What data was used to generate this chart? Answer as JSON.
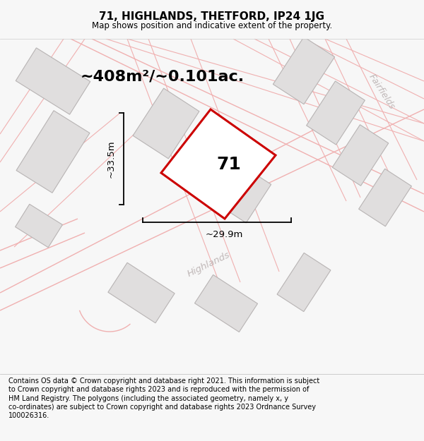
{
  "title_line1": "71, HIGHLANDS, THETFORD, IP24 1JG",
  "title_line2": "Map shows position and indicative extent of the property.",
  "area_text": "~408m²/~0.101ac.",
  "label_71": "71",
  "dim_height": "~33.5m",
  "dim_width": "~29.9m",
  "street_label": "Highlands",
  "street_label2": "Fairfields",
  "footer_text": "Contains OS data © Crown copyright and database right 2021. This information is subject to Crown copyright and database rights 2023 and is reproduced with the permission of HM Land Registry. The polygons (including the associated geometry, namely x, y co-ordinates) are subject to Crown copyright and database rights 2023 Ordnance Survey 100026316.",
  "bg_color": "#f7f7f7",
  "map_bg": "#ffffff",
  "plot_color_fill": "#ffffff",
  "plot_color_edge": "#cc0000",
  "building_fill": "#e0dede",
  "building_edge": "#b8b4b4",
  "road_line_color": "#f0b0b0",
  "road_line_color2": "#d4c8c8",
  "dim_line_color": "#000000",
  "text_color": "#000000",
  "street_text_color": "#c0b8b8"
}
